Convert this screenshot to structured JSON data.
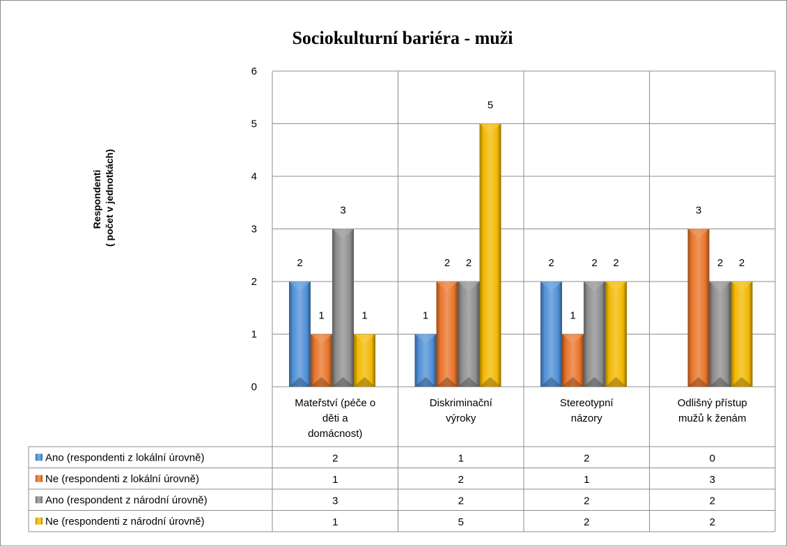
{
  "chart_data": {
    "type": "bar",
    "title": "Sociokulturní bariéra - muži",
    "ylabel_lines": [
      "Respondenti",
      "( počet v jednotkách)"
    ],
    "xlabel": "",
    "ylim": [
      0,
      6
    ],
    "y_ticks": [
      "0",
      "1",
      "2",
      "3",
      "4",
      "5",
      "6"
    ],
    "grid": true,
    "data_table": true,
    "categories": [
      [
        "Mateřství (péče o",
        "děti  a",
        "domácnost)"
      ],
      [
        "Diskriminační",
        "výroky"
      ],
      [
        "Stereotypní",
        "názory"
      ],
      [
        "Odlišný přístup",
        "mužů k ženám"
      ]
    ],
    "series": [
      {
        "name": "Ano (respondenti z lokální úrovně)",
        "color": "#4f8fd6",
        "values": [
          2,
          1,
          2,
          0
        ]
      },
      {
        "name": "Ne (respondenti z lokální úrovně)",
        "color": "#e8742a",
        "values": [
          1,
          2,
          1,
          3
        ]
      },
      {
        "name": "Ano (respondent z národní úrovně)",
        "color": "#8e8e8e",
        "values": [
          3,
          2,
          2,
          2
        ]
      },
      {
        "name": "Ne (respondenti z národní úrovně)",
        "color": "#f2b800",
        "values": [
          1,
          5,
          2,
          2
        ]
      }
    ]
  }
}
